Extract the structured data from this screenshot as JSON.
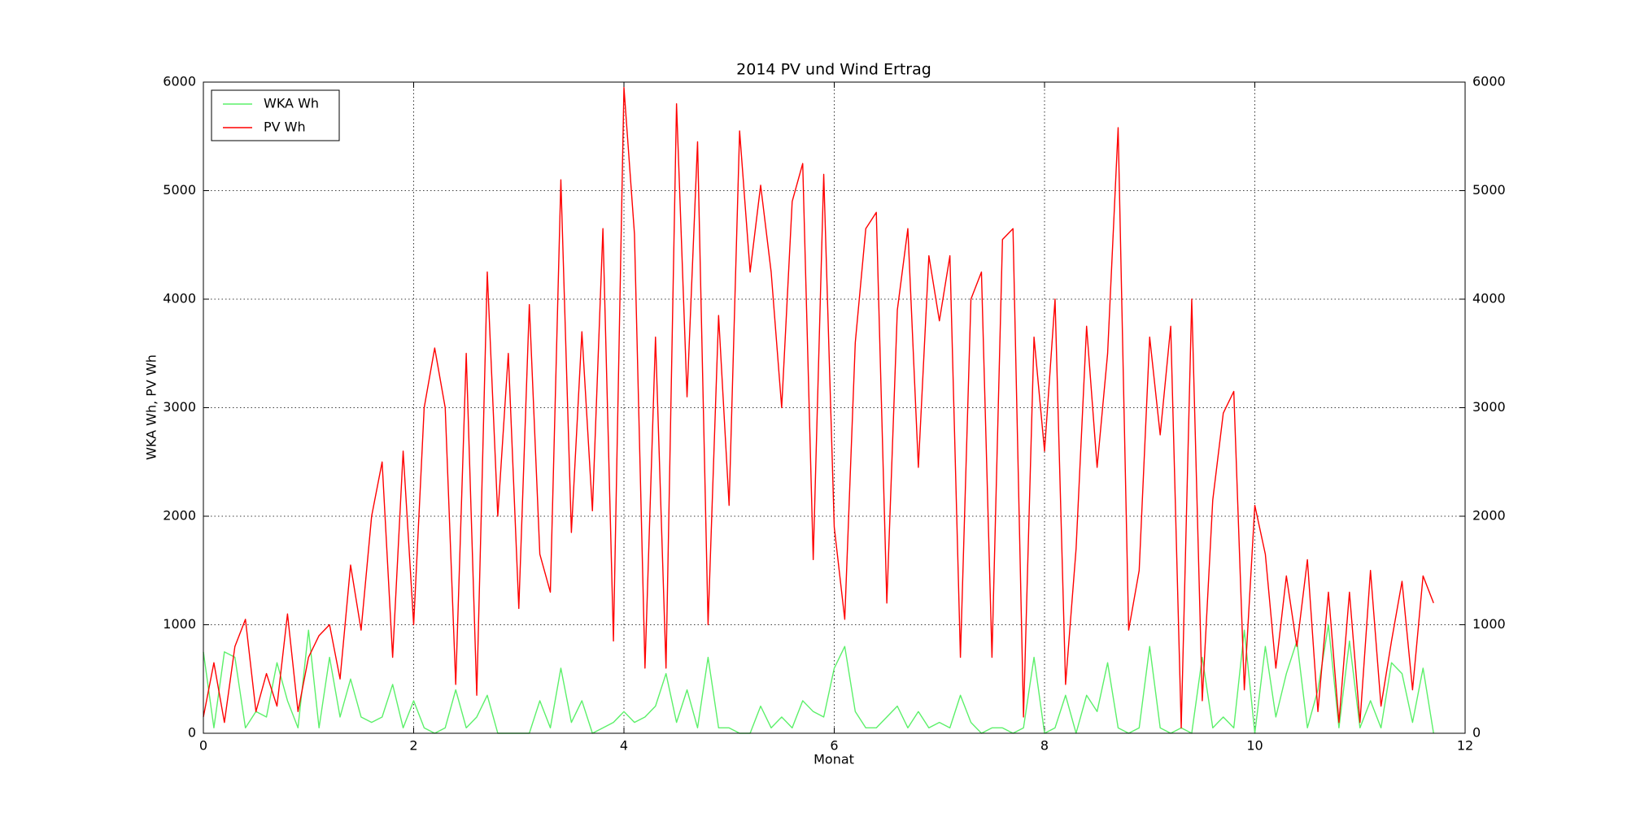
{
  "chart_data": {
    "type": "line",
    "title": "2014 PV und Wind Ertrag",
    "x_label": "Monat",
    "y_label": "WKA Wh, PV Wh",
    "x": [
      0,
      0.1,
      0.2,
      0.3,
      0.4,
      0.5,
      0.6,
      0.7,
      0.8,
      0.9,
      1,
      1.1,
      1.2,
      1.3,
      1.4,
      1.5,
      1.6,
      1.7,
      1.8,
      1.9,
      2,
      2.1,
      2.2,
      2.3,
      2.4,
      2.5,
      2.6,
      2.7,
      2.8,
      2.9,
      3,
      3.1,
      3.2,
      3.3,
      3.4,
      3.5,
      3.6,
      3.7,
      3.8,
      3.9,
      4,
      4.1,
      4.2,
      4.3,
      4.4,
      4.5,
      4.6,
      4.7,
      4.8,
      4.9,
      5,
      5.1,
      5.2,
      5.3,
      5.4,
      5.5,
      5.6,
      5.7,
      5.8,
      5.9,
      6,
      6.1,
      6.2,
      6.3,
      6.4,
      6.5,
      6.6,
      6.7,
      6.8,
      6.9,
      7,
      7.1,
      7.2,
      7.3,
      7.4,
      7.5,
      7.6,
      7.7,
      7.8,
      7.9,
      8,
      8.1,
      8.2,
      8.3,
      8.4,
      8.5,
      8.6,
      8.7,
      8.8,
      8.9,
      9,
      9.1,
      9.2,
      9.3,
      9.4,
      9.5,
      9.6,
      9.7,
      9.8,
      9.9,
      10,
      10.1,
      10.2,
      10.3,
      10.4,
      10.5,
      10.6,
      10.7,
      10.8,
      10.9,
      11,
      11.1,
      11.2,
      11.3,
      11.4,
      11.5,
      11.6,
      11.7
    ],
    "series": [
      {
        "name": "WKA Wh",
        "color": "#5cf06a",
        "values": [
          750,
          50,
          750,
          700,
          50,
          200,
          150,
          650,
          300,
          50,
          950,
          50,
          700,
          150,
          500,
          150,
          100,
          150,
          450,
          50,
          300,
          50,
          0,
          50,
          400,
          50,
          150,
          350,
          0,
          0,
          0,
          0,
          300,
          50,
          600,
          100,
          300,
          0,
          50,
          100,
          200,
          100,
          150,
          250,
          550,
          100,
          400,
          50,
          700,
          50,
          50,
          0,
          0,
          250,
          50,
          150,
          50,
          300,
          200,
          150,
          600,
          800,
          200,
          50,
          50,
          150,
          250,
          50,
          200,
          50,
          100,
          50,
          350,
          100,
          0,
          50,
          50,
          0,
          50,
          700,
          0,
          50,
          350,
          0,
          350,
          200,
          650,
          50,
          0,
          50,
          800,
          50,
          0,
          50,
          0,
          700,
          50,
          150,
          50,
          950,
          0,
          800,
          150,
          550,
          850,
          50,
          400,
          1000,
          50,
          850,
          50,
          300,
          50,
          650,
          550,
          100,
          600,
          0
        ]
      },
      {
        "name": "PV Wh",
        "color": "#ff0000",
        "values": [
          150,
          650,
          100,
          800,
          1050,
          200,
          550,
          250,
          1100,
          200,
          700,
          900,
          1000,
          500,
          1550,
          950,
          2000,
          2500,
          700,
          2600,
          1000,
          3000,
          3550,
          3000,
          450,
          3500,
          350,
          4250,
          2000,
          3500,
          1150,
          3950,
          1650,
          1300,
          5100,
          1850,
          3700,
          2050,
          4650,
          850,
          5950,
          4600,
          600,
          3650,
          600,
          5800,
          3100,
          5450,
          1000,
          3850,
          2100,
          5550,
          4250,
          5050,
          4250,
          3000,
          4900,
          5250,
          1600,
          5150,
          1900,
          1050,
          3600,
          4650,
          4800,
          1200,
          3900,
          4650,
          2450,
          4400,
          3800,
          4400,
          700,
          4000,
          4250,
          700,
          4550,
          4650,
          150,
          3650,
          2600,
          4000,
          450,
          1700,
          3750,
          2450,
          3500,
          5580,
          950,
          1500,
          3650,
          2750,
          3750,
          50,
          4000,
          300,
          2150,
          2950,
          3150,
          400,
          2100,
          1650,
          600,
          1450,
          800,
          1600,
          200,
          1300,
          100,
          1300,
          100,
          1500,
          250,
          850,
          1400,
          400,
          1450,
          1200
        ]
      }
    ],
    "xlim": [
      0,
      12
    ],
    "xticks": [
      0,
      2,
      4,
      6,
      8,
      10,
      12
    ],
    "ylim": [
      0,
      6000
    ],
    "yticks": [
      0,
      1000,
      2000,
      3000,
      4000,
      5000,
      6000
    ],
    "y2lim": [
      0,
      6000
    ],
    "y2ticks": [
      0,
      1000,
      2000,
      3000,
      4000,
      5000,
      6000
    ],
    "grid": true,
    "legend": "upper-left"
  }
}
